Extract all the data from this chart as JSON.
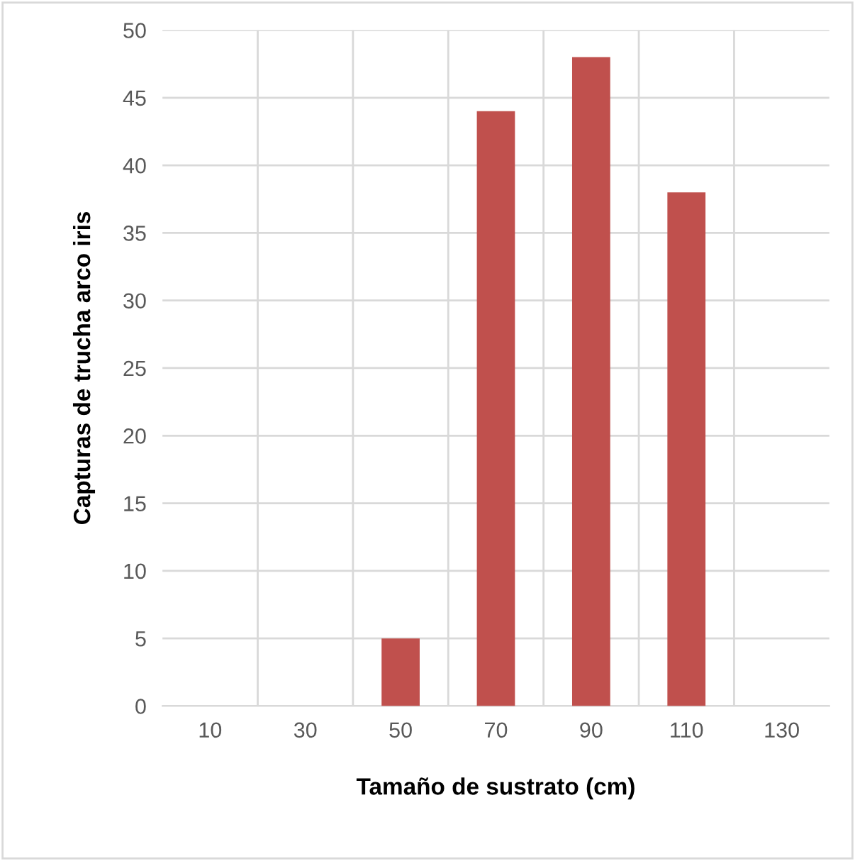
{
  "chart_data": {
    "type": "bar",
    "xlabel": "Tamaño de sustrato (cm)",
    "ylabel": "Capturas de trucha arco iris",
    "categories": [
      "10",
      "30",
      "50",
      "70",
      "90",
      "110",
      "130"
    ],
    "values": [
      0,
      0,
      5,
      44,
      48,
      38,
      0
    ],
    "color": "#c0504d",
    "ylim": [
      0,
      50
    ],
    "yticks": [
      0,
      5,
      10,
      15,
      20,
      25,
      30,
      35,
      40,
      45,
      50
    ],
    "grid": true
  }
}
